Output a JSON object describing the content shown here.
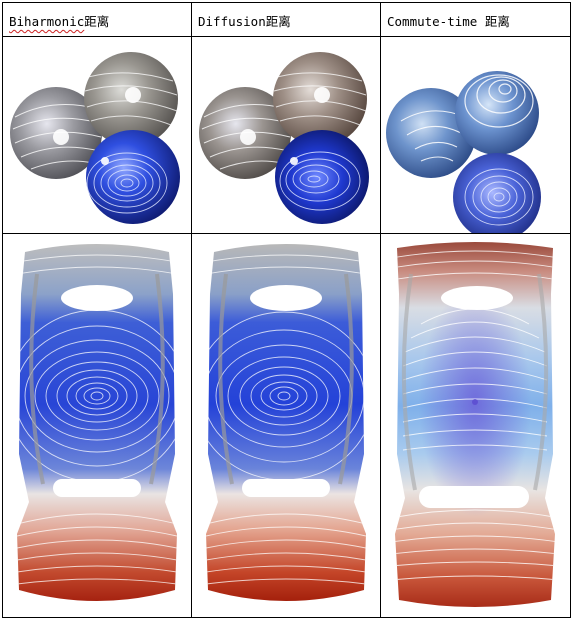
{
  "headers": [
    {
      "word": "Biharmonic",
      "suffix": "距离"
    },
    {
      "word": "Diffusion",
      "suffix": "距离"
    },
    {
      "word": "Commute-time ",
      "suffix": "距离"
    }
  ],
  "colors": {
    "grid_border": "#000000",
    "spell_underline": "#cc2222",
    "blue_region": "#2f4fdc",
    "gray_region": "#8a8a8a",
    "red_region": "#c43a22",
    "contour": "#ffffff"
  }
}
